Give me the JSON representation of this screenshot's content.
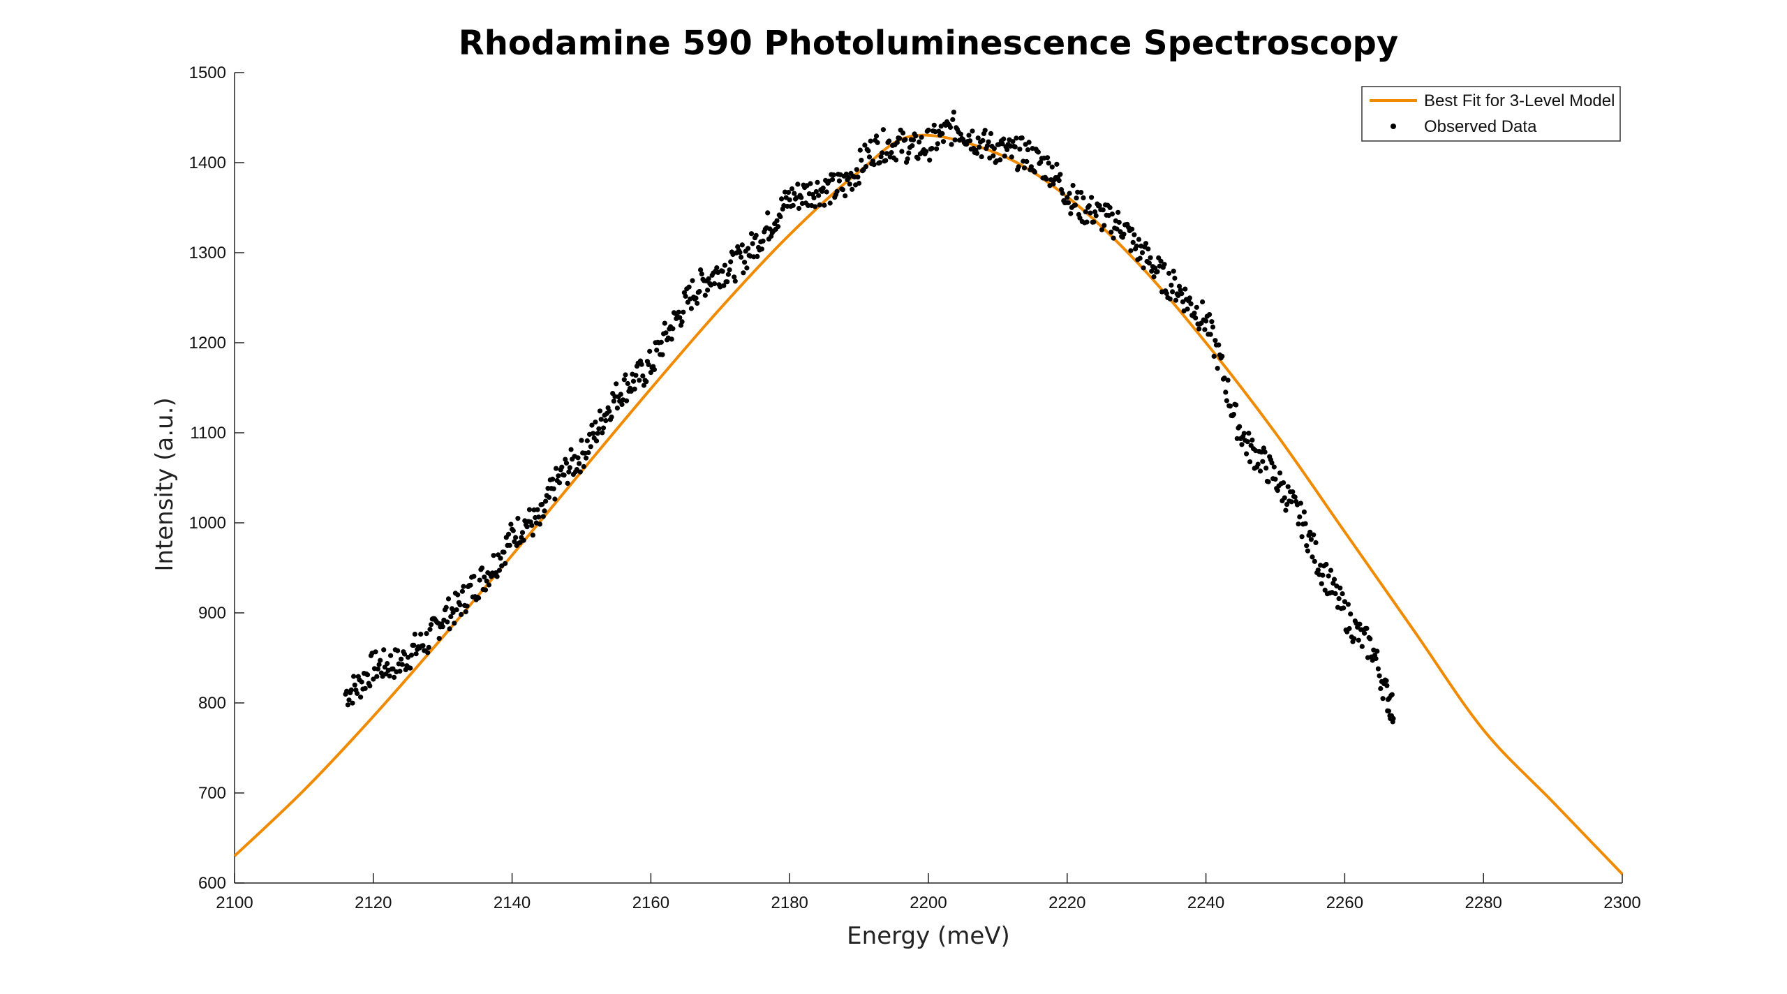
{
  "chart_data": {
    "type": "scatter",
    "title": "Rhodamine 590 Photoluminescence Spectroscopy",
    "xlabel": "Energy (meV)",
    "ylabel": "Intensity (a.u.)",
    "xlim": [
      2100,
      2300
    ],
    "ylim": [
      600,
      1500
    ],
    "x_ticks": [
      2100,
      2120,
      2140,
      2160,
      2180,
      2200,
      2220,
      2240,
      2260,
      2280,
      2300
    ],
    "y_ticks": [
      600,
      700,
      800,
      900,
      1000,
      1100,
      1200,
      1300,
      1400,
      1500
    ],
    "grid": false,
    "legend_position": "top-right",
    "series": [
      {
        "name": "Best Fit for 3-Level Model",
        "kind": "line",
        "color": "#F08A00",
        "x": [
          2100,
          2110,
          2120,
          2130,
          2140,
          2150,
          2160,
          2170,
          2180,
          2190,
          2198,
          2210,
          2220,
          2230,
          2240,
          2250,
          2260,
          2270,
          2280,
          2290,
          2300
        ],
        "y": [
          630,
          703,
          785,
          873,
          964,
          1057,
          1149,
          1238,
          1320,
          1390,
          1430,
          1410,
          1362,
          1290,
          1200,
          1100,
          990,
          880,
          770,
          690,
          610
        ]
      },
      {
        "name": "Observed Data",
        "kind": "scatter",
        "color": "#000000",
        "x": [
          2116,
          2118,
          2120,
          2122,
          2124,
          2126,
          2128,
          2130,
          2132,
          2134,
          2136,
          2138,
          2140,
          2142,
          2144,
          2146,
          2148,
          2150,
          2152,
          2154,
          2156,
          2158,
          2160,
          2162,
          2164,
          2166,
          2168,
          2170,
          2172,
          2174,
          2176,
          2178,
          2180,
          2182,
          2184,
          2186,
          2188,
          2190,
          2192,
          2194,
          2196,
          2198,
          2200,
          2202,
          2204,
          2206,
          2208,
          2210,
          2212,
          2214,
          2216,
          2218,
          2220,
          2222,
          2224,
          2226,
          2228,
          2230,
          2232,
          2234,
          2236,
          2238,
          2240,
          2242,
          2244,
          2246,
          2248,
          2250,
          2252,
          2254,
          2256,
          2258,
          2260,
          2262,
          2264,
          2266,
          2267
        ],
        "y": [
          810,
          820,
          840,
          842,
          845,
          860,
          870,
          895,
          905,
          925,
          940,
          960,
          985,
          1000,
          1000,
          1040,
          1060,
          1075,
          1100,
          1130,
          1150,
          1160,
          1175,
          1205,
          1230,
          1255,
          1270,
          1280,
          1285,
          1300,
          1320,
          1340,
          1360,
          1365,
          1370,
          1370,
          1375,
          1395,
          1415,
          1420,
          1420,
          1415,
          1420,
          1430,
          1440,
          1430,
          1420,
          1415,
          1410,
          1410,
          1400,
          1390,
          1365,
          1350,
          1345,
          1335,
          1330,
          1305,
          1290,
          1270,
          1260,
          1240,
          1225,
          1180,
          1120,
          1085,
          1070,
          1050,
          1025,
          1000,
          960,
          930,
          900,
          875,
          860,
          810,
          790
        ]
      }
    ]
  }
}
